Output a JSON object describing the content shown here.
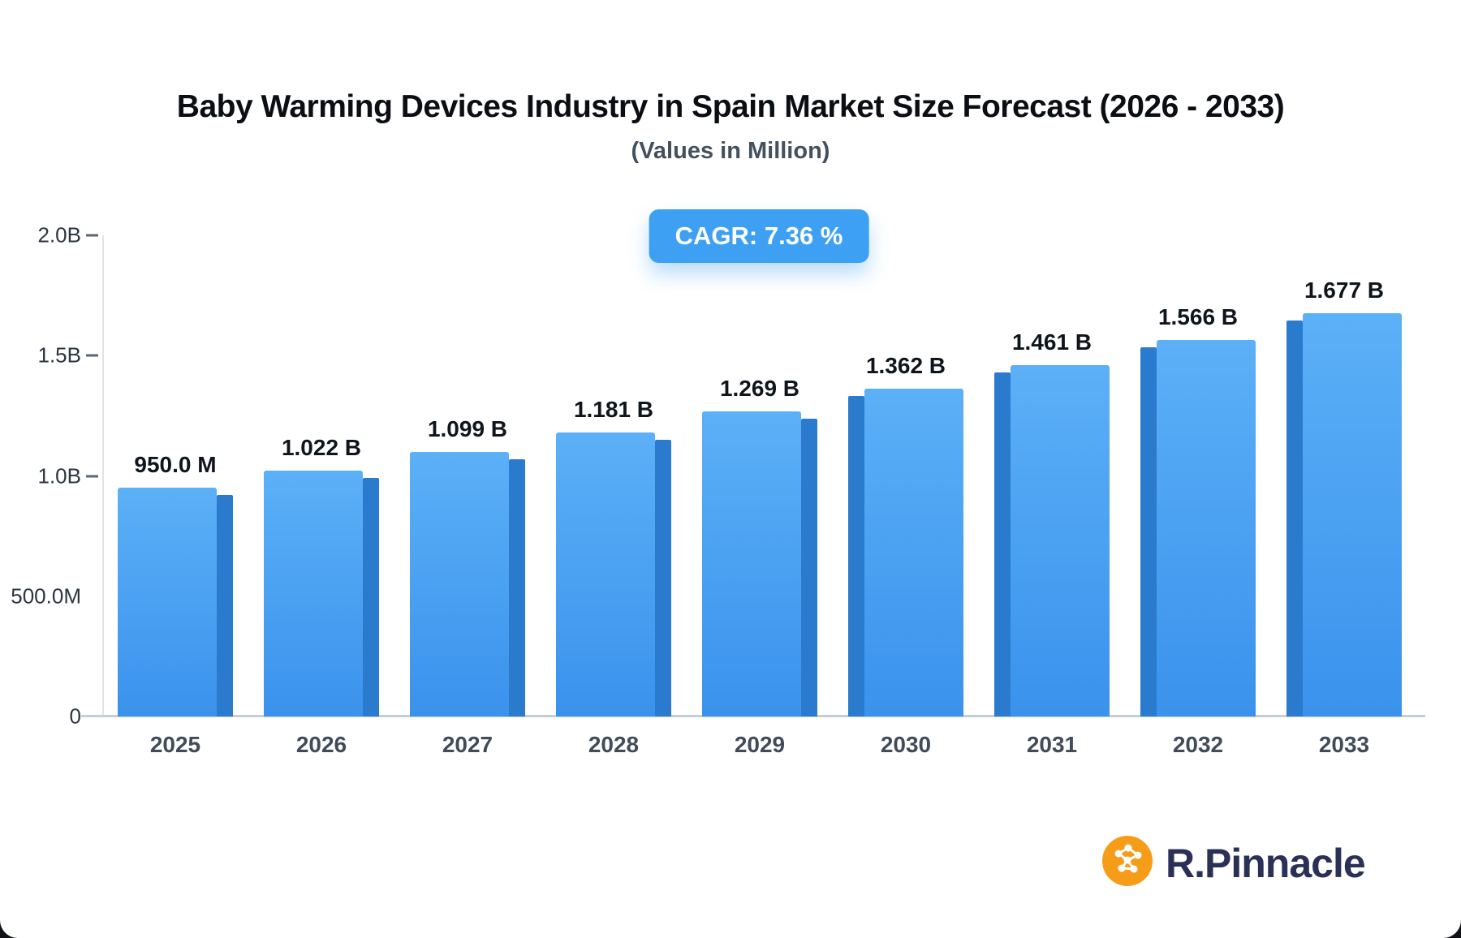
{
  "header": {
    "title": "Baby Warming Devices Industry in Spain Market Size Forecast (2026 - 2033)",
    "subtitle": "(Values in Million)",
    "cagr_label": "CAGR: 7.36 %"
  },
  "chart_data": {
    "type": "bar",
    "title": "Baby Warming Devices Industry in Spain Market Size Forecast (2026 - 2033)",
    "subtitle": "(Values in Million)",
    "annotation": "CAGR: 7.36 %",
    "categories": [
      "2025",
      "2026",
      "2027",
      "2028",
      "2029",
      "2030",
      "2031",
      "2032",
      "2033"
    ],
    "values_millions": [
      950.0,
      1022,
      1099,
      1181,
      1269,
      1362,
      1461,
      1566,
      1677
    ],
    "bar_labels": [
      "950.0 M",
      "1.022 B",
      "1.099 B",
      "1.181 B",
      "1.269 B",
      "1.362 B",
      "1.461 B",
      "1.566 B",
      "1.677 B"
    ],
    "xlabel": "",
    "ylabel": "",
    "ylim_millions": [
      0,
      2000
    ],
    "y_ticks": [
      {
        "label": "2.0B",
        "value": 2000,
        "dash": true
      },
      {
        "label": "1.5B",
        "value": 1500,
        "dash": true
      },
      {
        "label": "1.0B",
        "value": 1000,
        "dash": true
      },
      {
        "label": "500.0M",
        "value": 500,
        "dash": false
      },
      {
        "label": "0",
        "value": 0,
        "dash": false
      }
    ],
    "grid": "off",
    "legend": "none",
    "colors": {
      "bar_top": "#5cb0f7",
      "bar_bottom": "#3a92ec",
      "bar_side": "#2a7bce",
      "badge": "#3ea0f2"
    }
  },
  "brand": {
    "name": "R.Pinnacle",
    "icon": "network-molecule-icon",
    "icon_color": "#f59d18",
    "text_color": "#2b3156"
  }
}
